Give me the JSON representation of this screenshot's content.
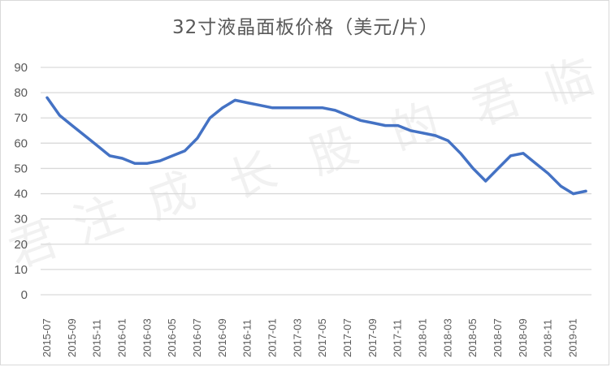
{
  "chart_data": {
    "type": "line",
    "title": "32寸液晶面板价格（美元/片）",
    "xlabel": "",
    "ylabel": "",
    "ylim": [
      0,
      90
    ],
    "yticks": [
      0,
      10,
      20,
      30,
      40,
      50,
      60,
      70,
      80,
      90
    ],
    "grid": true,
    "legend": "none",
    "x": [
      "2015-07",
      "2015-08",
      "2015-09",
      "2015-10",
      "2015-11",
      "2015-12",
      "2016-01",
      "2016-02",
      "2016-03",
      "2016-04",
      "2016-05",
      "2016-06",
      "2016-07",
      "2016-08",
      "2016-09",
      "2016-10",
      "2016-11",
      "2016-12",
      "2017-01",
      "2017-02",
      "2017-03",
      "2017-04",
      "2017-05",
      "2017-06",
      "2017-07",
      "2017-08",
      "2017-09",
      "2017-10",
      "2017-11",
      "2017-12",
      "2018-01",
      "2018-02",
      "2018-03",
      "2018-04",
      "2018-05",
      "2018-06",
      "2018-07",
      "2018-08",
      "2018-09",
      "2018-10",
      "2018-11",
      "2018-12",
      "2019-01",
      "2019-02"
    ],
    "xtick_labels": [
      "2015-07",
      "2015-09",
      "2015-11",
      "2016-01",
      "2016-03",
      "2016-05",
      "2016-07",
      "2016-09",
      "2016-11",
      "2017-01",
      "2017-03",
      "2017-05",
      "2017-07",
      "2017-09",
      "2017-11",
      "2018-01",
      "2018-03",
      "2018-05",
      "2018-07",
      "2018-09",
      "2018-11",
      "2019-01"
    ],
    "series": [
      {
        "name": "32寸液晶面板价格",
        "color": "#4472c4",
        "values": [
          78,
          71,
          67,
          63,
          59,
          55,
          54,
          52,
          52,
          53,
          55,
          57,
          62,
          70,
          74,
          77,
          76,
          75,
          74,
          74,
          74,
          74,
          74,
          73,
          71,
          69,
          68,
          67,
          67,
          65,
          64,
          63,
          61,
          56,
          50,
          45,
          50,
          55,
          56,
          52,
          48,
          43,
          40,
          41
        ]
      }
    ]
  },
  "watermark": [
    "君",
    "注",
    "成",
    "长",
    "股",
    "的",
    "君",
    "临"
  ],
  "colors": {
    "line": "#4472c4",
    "grid": "#d9d9d9",
    "text": "#595959"
  }
}
